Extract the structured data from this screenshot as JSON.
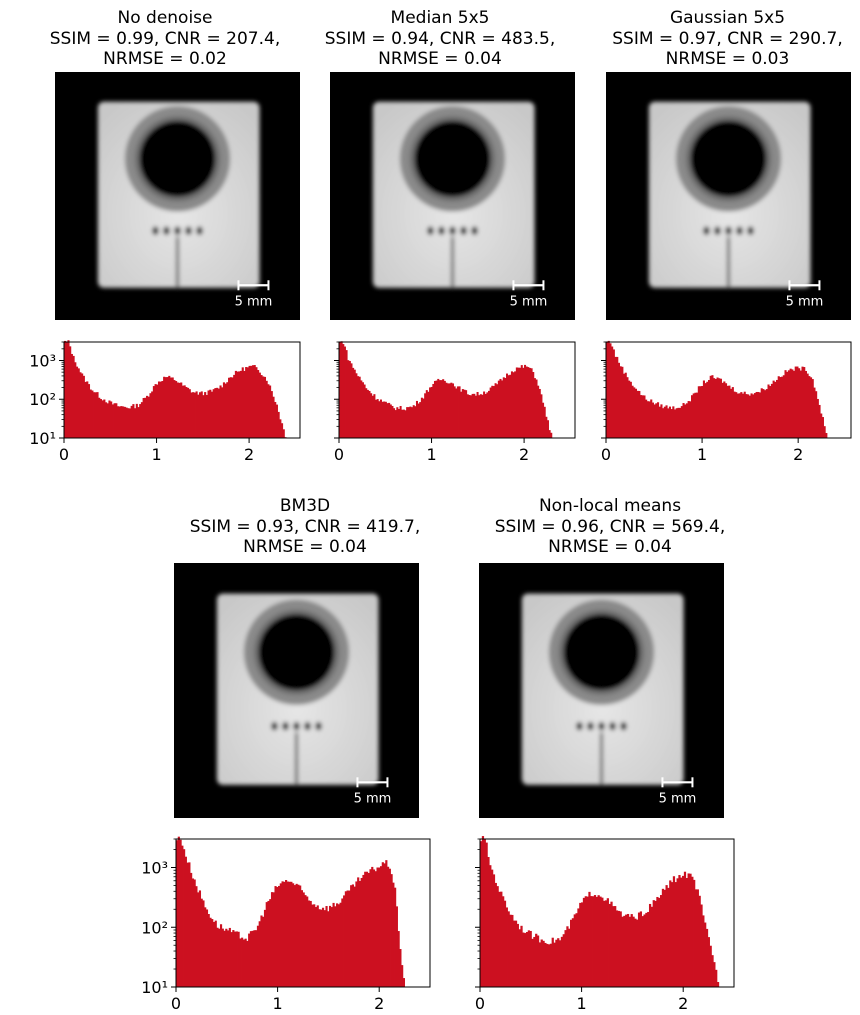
{
  "colors": {
    "histogram": "#cc1020",
    "background": "#ffffff"
  },
  "scale_bar": {
    "label": "5 mm"
  },
  "chart_data": [
    {
      "type": "bar",
      "title": "No denoise",
      "metrics": "SSIM = 0.99, CNR = 207.4,",
      "metrics2": "NRMSE = 0.02",
      "xlim": [
        0,
        2.55
      ],
      "ylim": [
        10,
        3000
      ],
      "yscale": "log",
      "xticks": [
        "0",
        "1",
        "2"
      ],
      "yticks": [
        "10¹",
        "10²",
        "10³"
      ],
      "x": [
        0.05,
        0.1,
        0.2,
        0.3,
        0.4,
        0.5,
        0.6,
        0.7,
        0.8,
        0.9,
        1.0,
        1.1,
        1.2,
        1.3,
        1.4,
        1.5,
        1.6,
        1.7,
        1.8,
        1.9,
        2.0,
        2.05,
        2.1,
        2.2,
        2.3,
        2.35,
        2.4
      ],
      "values": [
        3000,
        1200,
        400,
        180,
        110,
        80,
        65,
        62,
        70,
        120,
        260,
        380,
        320,
        210,
        150,
        140,
        160,
        220,
        380,
        560,
        680,
        690,
        600,
        300,
        70,
        25,
        10
      ]
    },
    {
      "type": "bar",
      "title": "Median 5x5",
      "metrics": "SSIM = 0.94, CNR = 483.5,",
      "metrics2": "NRMSE = 0.04",
      "xlim": [
        0,
        2.55
      ],
      "ylim": [
        10,
        3000
      ],
      "yscale": "log",
      "xticks": [
        "0",
        "1",
        "2"
      ],
      "yticks": [
        "10¹",
        "10²",
        "10³"
      ],
      "x": [
        0.05,
        0.1,
        0.2,
        0.3,
        0.4,
        0.5,
        0.6,
        0.7,
        0.8,
        0.9,
        1.0,
        1.1,
        1.2,
        1.3,
        1.4,
        1.5,
        1.6,
        1.7,
        1.8,
        1.9,
        2.0,
        2.05,
        2.1,
        2.15,
        2.2,
        2.25,
        2.3
      ],
      "values": [
        3000,
        1100,
        420,
        190,
        110,
        80,
        60,
        58,
        65,
        110,
        230,
        330,
        280,
        190,
        140,
        135,
        160,
        240,
        400,
        600,
        700,
        680,
        480,
        250,
        90,
        30,
        10
      ]
    },
    {
      "type": "bar",
      "title": "Gaussian 5x5",
      "metrics": "SSIM = 0.97, CNR = 290.7,",
      "metrics2": "NRMSE = 0.03",
      "xlim": [
        0,
        2.55
      ],
      "ylim": [
        10,
        3000
      ],
      "yscale": "log",
      "xticks": [
        "0",
        "1",
        "2"
      ],
      "yticks": [
        "10¹",
        "10²",
        "10³"
      ],
      "x": [
        0.05,
        0.1,
        0.2,
        0.3,
        0.4,
        0.5,
        0.6,
        0.7,
        0.8,
        0.9,
        1.0,
        1.1,
        1.2,
        1.3,
        1.4,
        1.5,
        1.6,
        1.7,
        1.8,
        1.9,
        2.0,
        2.05,
        2.1,
        2.15,
        2.2,
        2.25,
        2.3
      ],
      "values": [
        3000,
        1300,
        450,
        200,
        110,
        80,
        65,
        60,
        68,
        115,
        250,
        370,
        310,
        200,
        145,
        140,
        160,
        230,
        380,
        560,
        640,
        620,
        520,
        320,
        120,
        35,
        10
      ]
    },
    {
      "type": "bar",
      "title": "BM3D",
      "metrics": "SSIM = 0.93, CNR = 419.7,",
      "metrics2": "NRMSE = 0.04",
      "xlim": [
        0,
        2.5
      ],
      "ylim": [
        10,
        3000
      ],
      "yscale": "log",
      "xticks": [
        "0",
        "1",
        "2"
      ],
      "yticks": [
        "10¹",
        "10²",
        "10³"
      ],
      "x": [
        0.05,
        0.1,
        0.2,
        0.3,
        0.4,
        0.5,
        0.6,
        0.7,
        0.8,
        0.9,
        1.0,
        1.1,
        1.2,
        1.3,
        1.4,
        1.5,
        1.6,
        1.7,
        1.8,
        1.9,
        2.0,
        2.05,
        2.1,
        2.15,
        2.2,
        2.25
      ],
      "values": [
        3000,
        1500,
        500,
        200,
        110,
        90,
        75,
        65,
        100,
        260,
        500,
        620,
        480,
        300,
        220,
        210,
        260,
        400,
        620,
        850,
        1050,
        1200,
        1100,
        500,
        60,
        10
      ]
    },
    {
      "type": "bar",
      "title": "Non-local means",
      "metrics": "SSIM = 0.96, CNR = 569.4,",
      "metrics2": "NRMSE = 0.04",
      "xlim": [
        0,
        2.5
      ],
      "ylim": [
        10,
        3000
      ],
      "yscale": "log",
      "xticks": [
        "0",
        "1",
        "2"
      ],
      "yticks": [
        "10¹",
        "10²",
        "10³"
      ],
      "x": [
        0.05,
        0.1,
        0.2,
        0.3,
        0.4,
        0.5,
        0.6,
        0.7,
        0.8,
        0.9,
        1.0,
        1.1,
        1.2,
        1.3,
        1.4,
        1.5,
        1.6,
        1.7,
        1.8,
        1.9,
        2.0,
        2.05,
        2.1,
        2.15,
        2.2,
        2.3,
        2.35
      ],
      "values": [
        3000,
        1100,
        380,
        170,
        100,
        75,
        62,
        58,
        65,
        120,
        260,
        380,
        340,
        230,
        160,
        145,
        165,
        240,
        400,
        620,
        750,
        760,
        620,
        360,
        140,
        30,
        10
      ]
    }
  ]
}
